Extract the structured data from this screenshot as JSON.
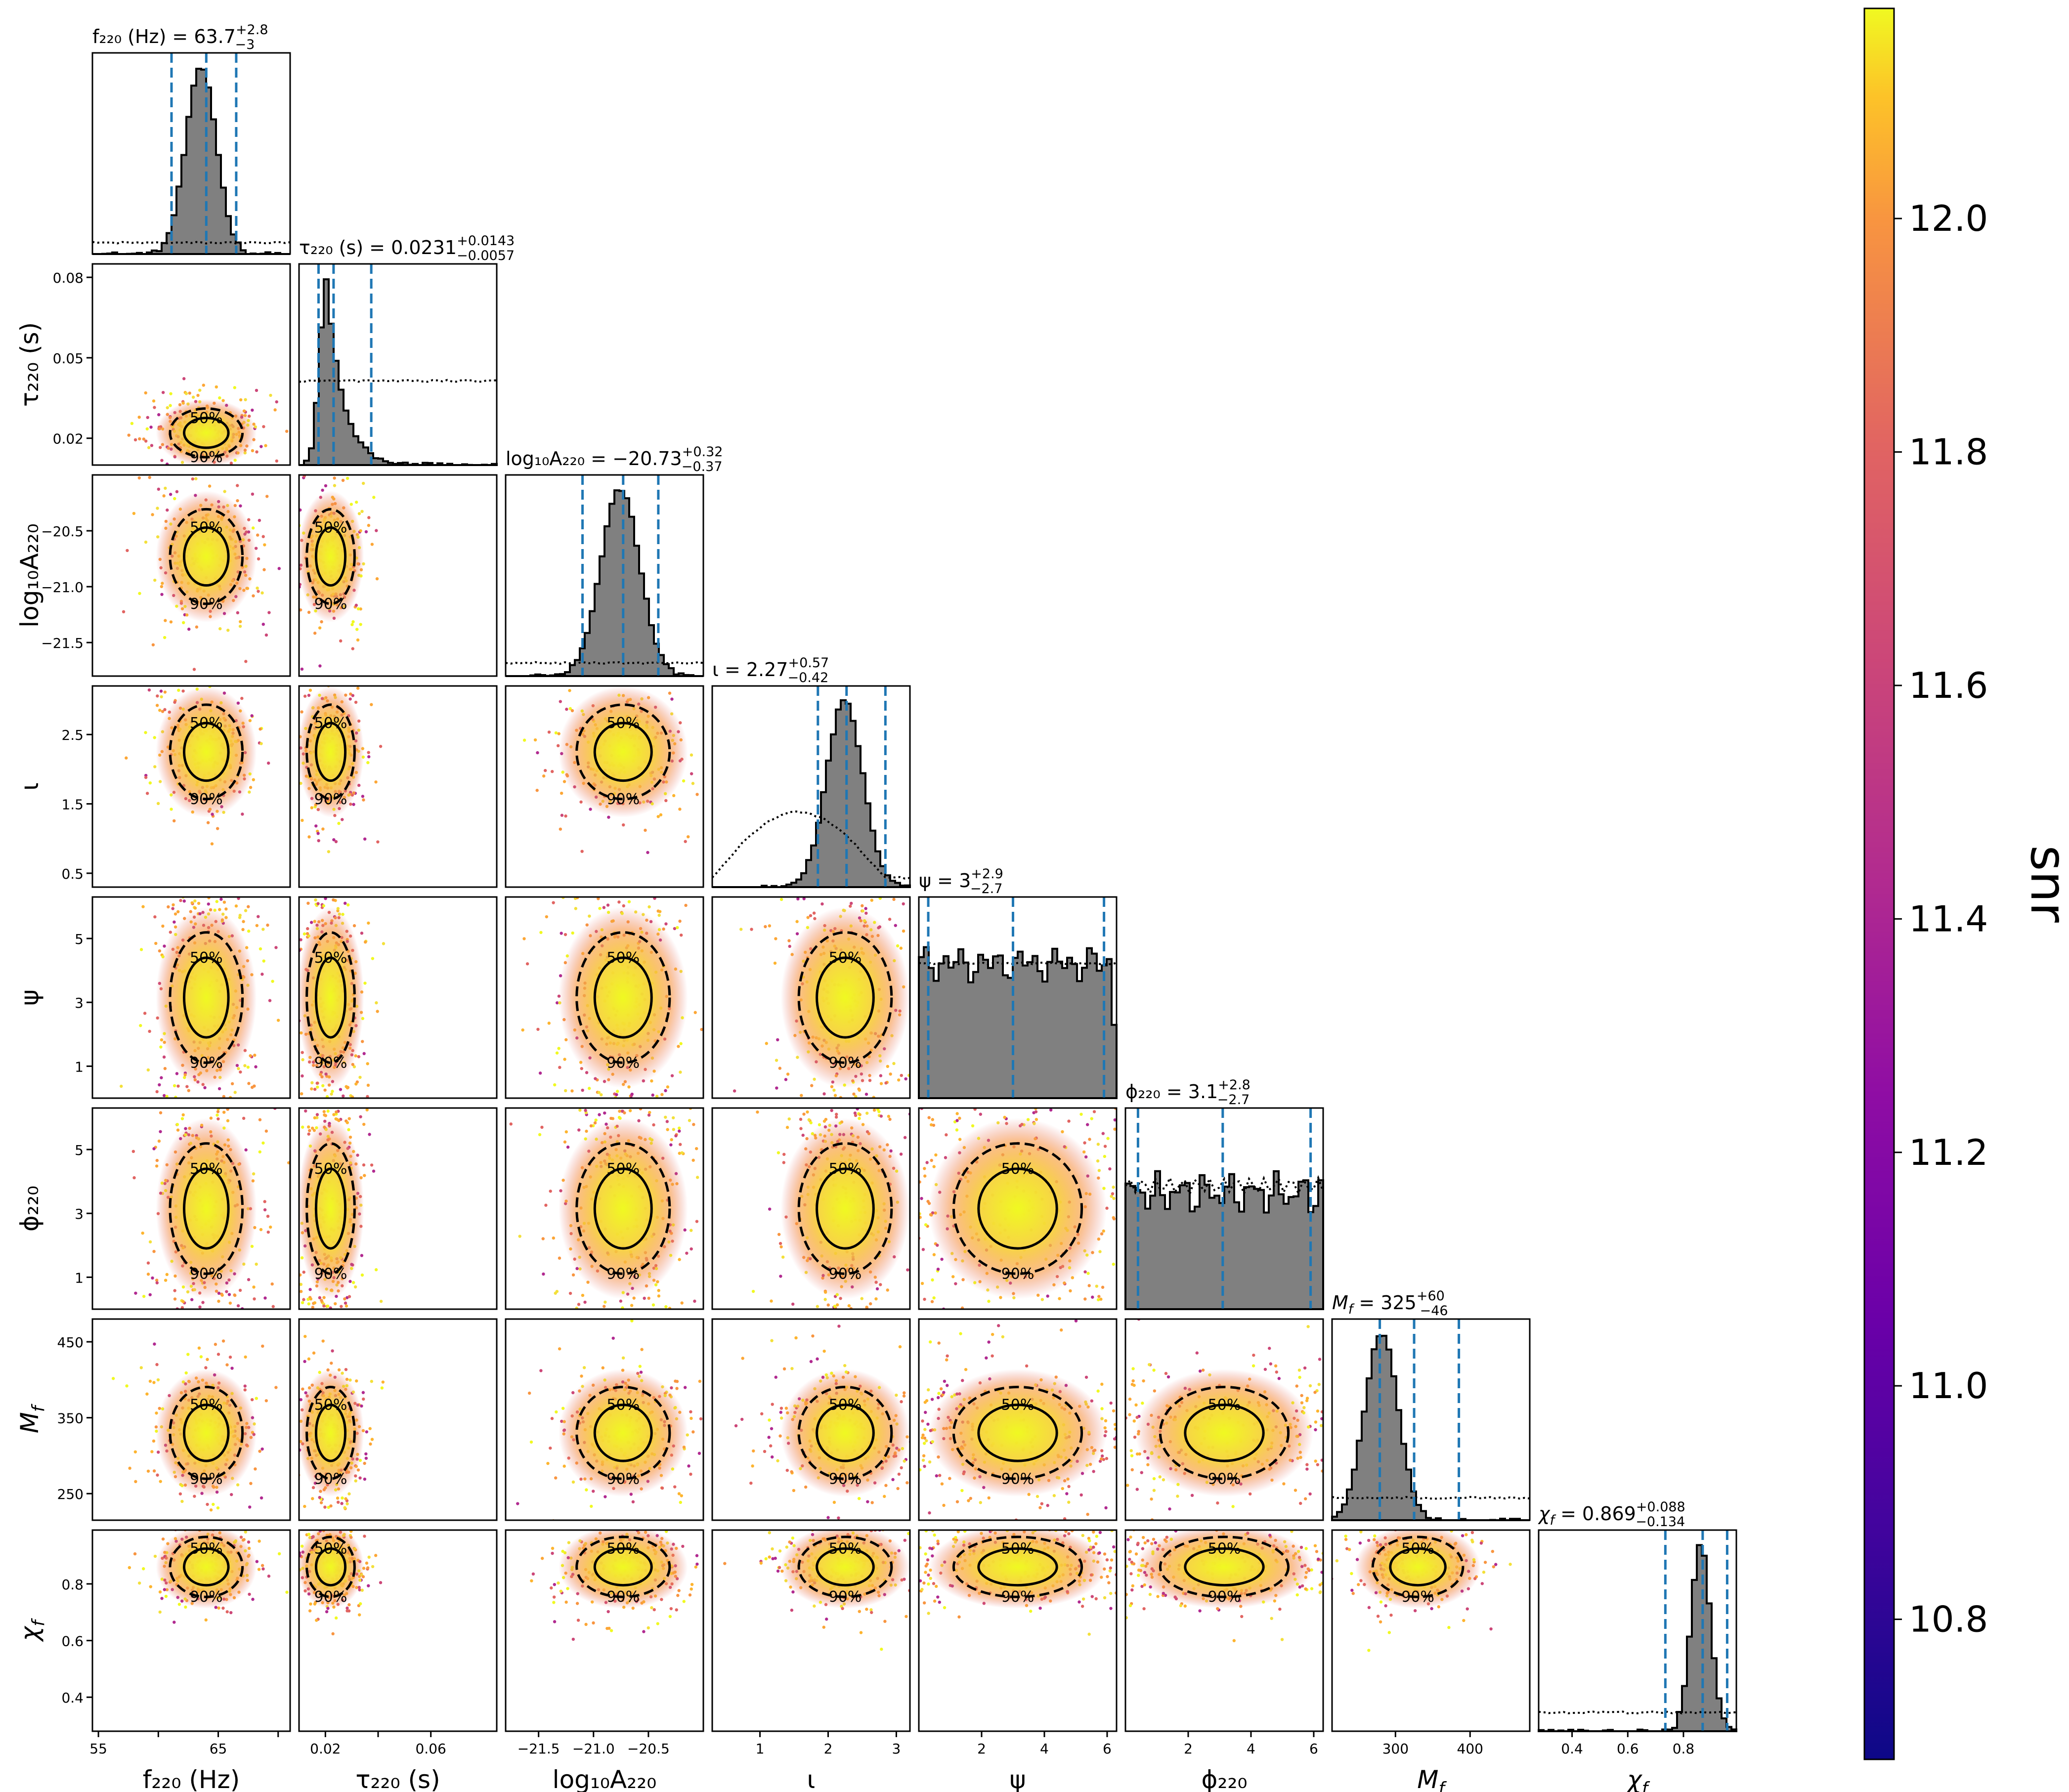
{
  "chart_data": {
    "type": "scatter",
    "parameters": [
      {
        "key": "f220",
        "axis_label": "f₂₂₀ (Hz)",
        "title_value": "63.7",
        "plus": "2.8",
        "minus": "3",
        "range": [
          54.5,
          71
        ],
        "ticks": [
          55,
          60,
          65,
          70
        ],
        "tick_labels": [
          "55",
          "",
          "65",
          ""
        ],
        "median": 63.7
      },
      {
        "key": "tau220",
        "axis_label": "τ₂₂₀ (s)",
        "title_value": "0.0231",
        "plus": "0.0143",
        "minus": "0.0057",
        "range": [
          0.01,
          0.085
        ],
        "ticks": [
          0.02,
          0.05,
          0.08
        ],
        "tick_labels": [
          "0.02",
          "0.05",
          "0.08"
        ],
        "x_tick_labels": [
          "0.02",
          "",
          "0.06"
        ],
        "x_ticks": [
          0.02,
          0.04,
          0.06
        ],
        "median": 0.0231
      },
      {
        "key": "logA220",
        "axis_label": "log₁₀A₂₂₀",
        "title_value": "−20.73",
        "plus": "0.32",
        "minus": "0.37",
        "range": [
          -21.8,
          -20.0
        ],
        "ticks": [
          -21.5,
          -21.0,
          -20.5
        ],
        "tick_labels": [
          "−21.5",
          "−21.0",
          "−20.5"
        ],
        "median": -20.73
      },
      {
        "key": "iota",
        "axis_label": "ι",
        "title_value": "2.27",
        "plus": "0.57",
        "minus": "0.42",
        "range": [
          0.3,
          3.2
        ],
        "ticks": [
          0.5,
          1.5,
          2.5
        ],
        "tick_labels": [
          "0.5",
          "1.5",
          "2.5"
        ],
        "x_ticks": [
          1,
          2,
          3
        ],
        "x_tick_labels": [
          "1",
          "2",
          "3"
        ],
        "median": 2.27
      },
      {
        "key": "psi",
        "axis_label": "ψ",
        "title_value": "3",
        "plus": "2.9",
        "minus": "2.7",
        "range": [
          0,
          6.3
        ],
        "ticks": [
          1,
          3,
          5
        ],
        "tick_labels": [
          "1",
          "3",
          "5"
        ],
        "x_ticks": [
          2,
          4,
          6
        ],
        "x_tick_labels": [
          "2",
          "4",
          "6"
        ],
        "median": 3
      },
      {
        "key": "phi220",
        "axis_label": "ϕ₂₂₀",
        "title_value": "3.1",
        "plus": "2.8",
        "minus": "2.7",
        "range": [
          0,
          6.3
        ],
        "ticks": [
          1,
          3,
          5
        ],
        "tick_labels": [
          "1",
          "3",
          "5"
        ],
        "x_ticks": [
          2,
          4,
          6
        ],
        "x_tick_labels": [
          "2",
          "4",
          "6"
        ],
        "median": 3.1
      },
      {
        "key": "Mf",
        "axis_label": "M_f",
        "title_value": "325",
        "plus": "60",
        "minus": "46",
        "range": [
          215,
          480
        ],
        "ticks": [
          250,
          350,
          450
        ],
        "tick_labels": [
          "250",
          "350",
          "450"
        ],
        "x_ticks": [
          300,
          400
        ],
        "x_tick_labels": [
          "300",
          "400"
        ],
        "median": 325
      },
      {
        "key": "chif",
        "axis_label": "χ_f",
        "title_value": "0.869",
        "plus": "0.088",
        "minus": "0.134",
        "range": [
          0.28,
          0.99
        ],
        "ticks": [
          0.4,
          0.6,
          0.8
        ],
        "tick_labels": [
          "0.4",
          "0.6",
          "0.8"
        ],
        "x_ticks": [
          0.4,
          0.6,
          0.8
        ],
        "x_tick_labels": [
          "0.4",
          "0.6",
          "0.8"
        ],
        "median": 0.869
      }
    ],
    "contour_labels": [
      "50%",
      "90%"
    ],
    "colorbar": {
      "label": "snr",
      "min": 10.68,
      "max": 12.18,
      "ticks": [
        10.8,
        11.0,
        11.2,
        11.4,
        11.6,
        11.8,
        12.0
      ],
      "tick_labels": [
        "10.8",
        "11.0",
        "11.2",
        "11.4",
        "11.6",
        "11.8",
        "12.0"
      ],
      "colormap": "plasma"
    },
    "colors": {
      "quantile_line": "#1f77b4",
      "histogram_fill": "#808080",
      "histogram_edge": "#000000",
      "contour": "#000000"
    }
  }
}
